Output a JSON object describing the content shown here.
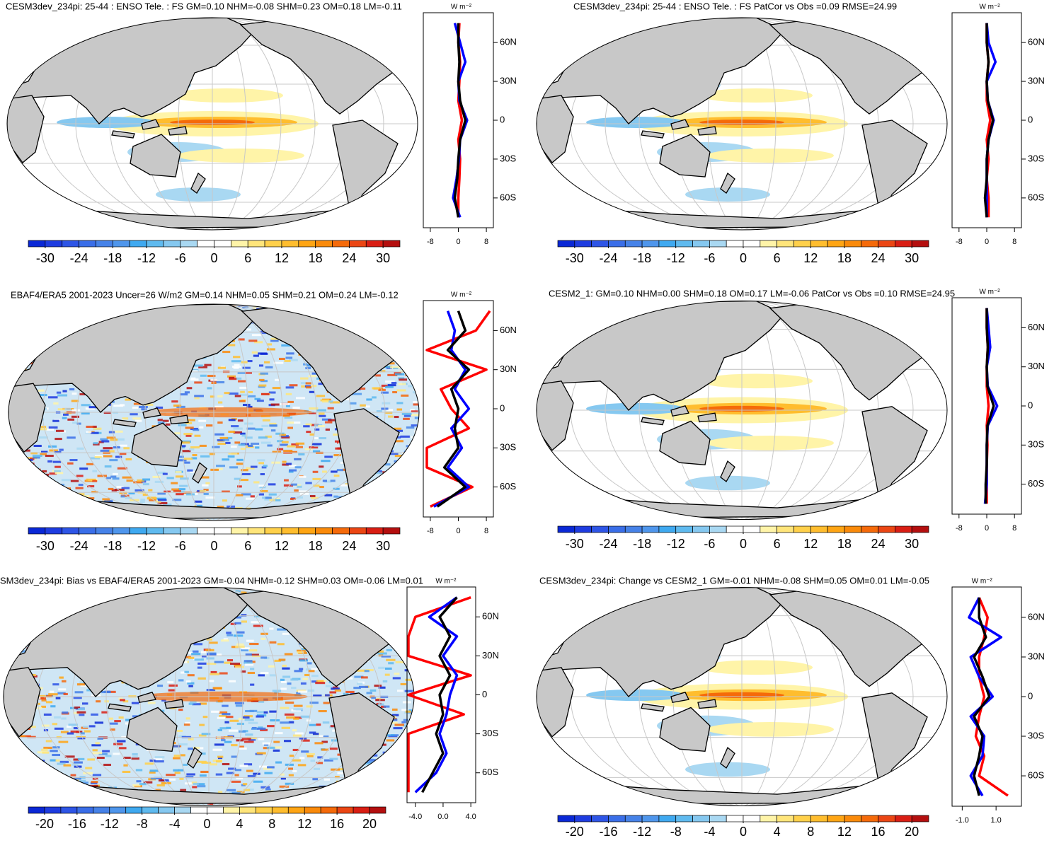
{
  "chart_data": [
    {
      "type": "map",
      "title": "CESM3dev_234pi: 25-44 : ENSO Tele. : FS GM=0.10 NHM=-0.08 SHM=0.23 OM=0.18 LM=-0.11",
      "units": "W m⁻²",
      "colorbar": {
        "lim": [
          -33,
          33
        ],
        "ticks": [
          -30,
          -24,
          -18,
          -12,
          -6,
          0,
          6,
          12,
          18,
          24,
          30
        ]
      },
      "zonal": {
        "xlim": [
          -10,
          10
        ],
        "xticks": [
          -8,
          0,
          8
        ],
        "ylim": [
          -83,
          83
        ],
        "yticks": [
          {
            "value": 60,
            "label": "60N"
          },
          {
            "value": 30,
            "label": "30N"
          },
          {
            "value": 0,
            "label": "0"
          },
          {
            "value": -30,
            "label": "30S"
          },
          {
            "value": -60,
            "label": "60S"
          }
        ],
        "lat": [
          -75,
          -60,
          -45,
          -30,
          -15,
          0,
          15,
          30,
          45,
          60,
          75
        ],
        "series": [
          {
            "color": "#ff0000",
            "values": [
              0,
              0,
              0.3,
              0.5,
              0,
              1,
              0,
              0.3,
              0.5,
              0,
              0.3
            ]
          },
          {
            "color": "#0000ff",
            "values": [
              0.5,
              -1.5,
              -0.5,
              0.2,
              0.5,
              2.5,
              0.3,
              0,
              2,
              0.5,
              -1
            ]
          },
          {
            "color": "#000000",
            "values": [
              0,
              -1,
              -0.3,
              0,
              0.5,
              2,
              0.5,
              0,
              0.3,
              0,
              0
            ]
          }
        ]
      }
    },
    {
      "type": "map",
      "title": "CESM3dev_234pi: 25-44 : ENSO Tele. : FS PatCor vs Obs =0.09 RMSE=24.99",
      "units": "W m⁻²",
      "colorbar": {
        "lim": [
          -33,
          33
        ],
        "ticks": [
          -30,
          -24,
          -18,
          -12,
          -6,
          0,
          6,
          12,
          18,
          24,
          30
        ]
      },
      "zonal": {
        "xlim": [
          -10,
          10
        ],
        "xticks": [
          -8,
          0,
          8
        ],
        "ylim": [
          -83,
          83
        ],
        "yticks": [
          {
            "value": 60,
            "label": "60N"
          },
          {
            "value": 30,
            "label": "30N"
          },
          {
            "value": 0,
            "label": "0"
          },
          {
            "value": -30,
            "label": "30S"
          },
          {
            "value": -60,
            "label": "60S"
          }
        ],
        "lat": [
          -75,
          -60,
          -45,
          -30,
          -15,
          0,
          15,
          30,
          45,
          60,
          75
        ],
        "series": [
          {
            "color": "#ff0000",
            "values": [
              0.5,
              0.5,
              0,
              0.5,
              0,
              1,
              0,
              0,
              0.5,
              0,
              0
            ]
          },
          {
            "color": "#0000ff",
            "values": [
              0,
              0,
              0,
              0,
              0.5,
              2,
              0.3,
              0,
              2.5,
              0.5,
              0
            ]
          },
          {
            "color": "#000000",
            "values": [
              0,
              -0.5,
              0,
              0,
              0.5,
              1.8,
              0.3,
              0,
              0.5,
              0,
              0
            ]
          }
        ]
      }
    },
    {
      "type": "map",
      "title": "EBAF4/ERA5 2001-2023 Uncer=26 W/m2 GM=0.14 NHM=0.05 SHM=0.21 OM=0.24 LM=-0.12",
      "units": "W m⁻²",
      "colorbar": {
        "lim": [
          -33,
          33
        ],
        "ticks": [
          -30,
          -24,
          -18,
          -12,
          -6,
          0,
          6,
          12,
          18,
          24,
          30
        ]
      },
      "zonal": {
        "xlim": [
          -10,
          10
        ],
        "xticks": [
          -8,
          0,
          8
        ],
        "ylim": [
          -83,
          83
        ],
        "yticks": [
          {
            "value": 60,
            "label": "60N"
          },
          {
            "value": 30,
            "label": "30N"
          },
          {
            "value": 0,
            "label": "0"
          },
          {
            "value": -30,
            "label": "30S"
          },
          {
            "value": -60,
            "label": "60S"
          }
        ],
        "lat": [
          -75,
          -60,
          -45,
          -30,
          -15,
          0,
          15,
          30,
          45,
          60,
          75
        ],
        "series": [
          {
            "color": "#ff0000",
            "values": [
              -8,
              4,
              -9,
              -9,
              3,
              -2,
              -5,
              8,
              -9,
              5,
              9
            ]
          },
          {
            "color": "#0000ff",
            "values": [
              -7,
              3,
              -3,
              1,
              -2,
              3,
              -1,
              2,
              -2,
              -1,
              -3
            ]
          },
          {
            "color": "#000000",
            "values": [
              -6,
              2,
              -4,
              0,
              -1,
              0,
              -2,
              3,
              -3,
              2,
              0
            ]
          }
        ]
      }
    },
    {
      "type": "map",
      "title": "CESM2_1: GM=0.10 NHM=0.00 SHM=0.18 OM=0.17 LM=-0.06 PatCor vs Obs =0.10 RMSE=24.95",
      "units": "W m⁻²",
      "colorbar": {
        "lim": [
          -33,
          33
        ],
        "ticks": [
          -30,
          -24,
          -18,
          -12,
          -6,
          0,
          6,
          12,
          18,
          24,
          30
        ]
      },
      "zonal": {
        "xlim": [
          -10,
          10
        ],
        "xticks": [
          -8,
          0,
          8
        ],
        "ylim": [
          -83,
          83
        ],
        "yticks": [
          {
            "value": 60,
            "label": "60N"
          },
          {
            "value": 30,
            "label": "30N"
          },
          {
            "value": 0,
            "label": "0"
          },
          {
            "value": -30,
            "label": "30S"
          },
          {
            "value": -60,
            "label": "60S"
          }
        ],
        "lat": [
          -75,
          -60,
          -45,
          -30,
          -15,
          0,
          15,
          30,
          45,
          60,
          75
        ],
        "series": [
          {
            "color": "#ff0000",
            "values": [
              0,
              0,
              0,
              0.2,
              0,
              0.5,
              0,
              0,
              0.3,
              0,
              0
            ]
          },
          {
            "color": "#0000ff",
            "values": [
              -0.5,
              0,
              0,
              0,
              0.3,
              3,
              0.3,
              0,
              1,
              0.5,
              0
            ]
          },
          {
            "color": "#000000",
            "values": [
              -0.3,
              -0.3,
              0,
              0,
              0.2,
              2,
              0.2,
              0,
              0.3,
              0,
              0
            ]
          }
        ]
      }
    },
    {
      "type": "map",
      "title": "SM3dev_234pi: Bias vs EBAF4/ERA5 2001-2023 GM=-0.04 NHM=-0.12 SHM=0.03 OM=-0.06 LM=0.01",
      "units": "W m⁻²",
      "colorbar": {
        "lim": [
          -22,
          22
        ],
        "ticks": [
          -20,
          -16,
          -12,
          -8,
          -4,
          0,
          4,
          8,
          12,
          16,
          20
        ]
      },
      "zonal": {
        "xlim": [
          -5.2,
          4.7
        ],
        "xticks": [
          {
            "value": -4,
            "label": "-4.0"
          },
          {
            "value": 0,
            "label": "0.0"
          },
          {
            "value": 4,
            "label": "4.0"
          }
        ],
        "ylim": [
          -83,
          83
        ],
        "yticks": [
          {
            "value": 60,
            "label": "60N"
          },
          {
            "value": 30,
            "label": "30N"
          },
          {
            "value": 0,
            "label": "0"
          },
          {
            "value": -30,
            "label": "30S"
          },
          {
            "value": -60,
            "label": "60S"
          }
        ],
        "lat": [
          -75,
          -60,
          -45,
          -30,
          -15,
          0,
          15,
          30,
          45,
          60,
          75
        ],
        "series": [
          {
            "color": "#ff0000",
            "values": [
              -5,
              -5,
              -5,
              -5,
              3,
              -5,
              4,
              -5,
              -5,
              -4,
              4
            ]
          },
          {
            "color": "#0000ff",
            "values": [
              -4,
              -1,
              0.5,
              -0.5,
              0.5,
              1,
              2,
              0,
              2,
              -2,
              2
            ]
          },
          {
            "color": "#000000",
            "values": [
              -3,
              -1.5,
              0,
              -1,
              0,
              -0.5,
              1,
              -0.5,
              1,
              -0.5,
              2
            ]
          }
        ]
      }
    },
    {
      "type": "map",
      "title": "CESM3dev_234pi: Change vs CESM2_1 GM=-0.01 NHM=-0.08 SHM=0.05 OM=0.01 LM=-0.05",
      "units": "W m⁻²",
      "colorbar": {
        "lim": [
          -22,
          22
        ],
        "ticks": [
          -20,
          -16,
          -12,
          -8,
          -4,
          0,
          4,
          8,
          12,
          16,
          20
        ]
      },
      "zonal": {
        "xlim": [
          -1.6,
          2.5
        ],
        "xticks": [
          {
            "value": -1,
            "label": "-1.0"
          },
          {
            "value": 1,
            "label": "1.0"
          }
        ],
        "ylim": [
          -83,
          83
        ],
        "yticks": [
          {
            "value": 60,
            "label": "60N"
          },
          {
            "value": 30,
            "label": "30N"
          },
          {
            "value": 0,
            "label": "0"
          },
          {
            "value": -30,
            "label": "30S"
          },
          {
            "value": -60,
            "label": "60S"
          }
        ],
        "lat": [
          -75,
          -60,
          -45,
          -30,
          -15,
          0,
          15,
          30,
          45,
          60,
          75
        ],
        "series": [
          {
            "color": "#ff0000",
            "values": [
              1.7,
              0,
              0.3,
              -0.2,
              0,
              0.3,
              0,
              0,
              0.3,
              0.5,
              0
            ]
          },
          {
            "color": "#0000ff",
            "values": [
              0.2,
              -0.5,
              0.2,
              0.3,
              -0.5,
              0.8,
              0,
              -0.5,
              1.3,
              -0.6,
              0
            ]
          },
          {
            "color": "#000000",
            "values": [
              0,
              -0.3,
              0,
              0.2,
              -0.3,
              0.6,
              0.2,
              -0.3,
              0.4,
              0,
              0
            ]
          }
        ]
      }
    }
  ]
}
